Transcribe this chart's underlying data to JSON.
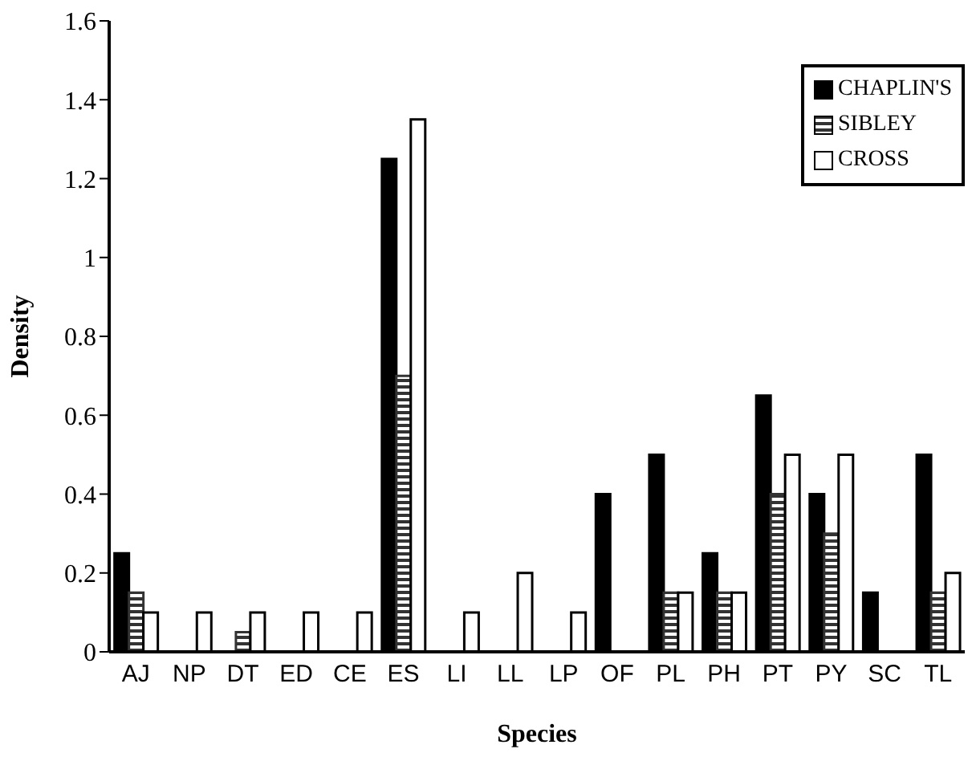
{
  "chart_data": {
    "type": "bar",
    "xlabel": "Species",
    "ylabel": "Density",
    "categories": [
      "AJ",
      "NP",
      "DT",
      "ED",
      "CE",
      "ES",
      "LI",
      "LL",
      "LP",
      "OF",
      "PL",
      "PH",
      "PT",
      "PY",
      "SC",
      "TL"
    ],
    "series": [
      {
        "name": "CHAPLIN'S",
        "color": "#000000",
        "values": [
          0.25,
          0,
          0,
          0,
          0,
          1.25,
          0,
          0,
          0,
          0.4,
          0.5,
          0.25,
          0.65,
          0.4,
          0.15,
          0.5
        ]
      },
      {
        "name": "SIBLEY",
        "color": "#333333",
        "values": [
          0.15,
          0,
          0.05,
          0,
          0,
          0.7,
          0,
          0,
          0,
          0,
          0.15,
          0.15,
          0.4,
          0.3,
          0,
          0.15
        ]
      },
      {
        "name": "CROSS",
        "color": "#ffffff",
        "values": [
          0.1,
          0.1,
          0.1,
          0.1,
          0.1,
          1.35,
          0.1,
          0.2,
          0.1,
          0,
          0.15,
          0.15,
          0.5,
          0.5,
          0,
          0.2
        ]
      }
    ],
    "ylim": [
      0,
      1.6
    ],
    "yticks": [
      0,
      0.2,
      0.4,
      0.6,
      0.8,
      1,
      1.2,
      1.4,
      1.6
    ],
    "grid": false,
    "legend": "top right"
  }
}
